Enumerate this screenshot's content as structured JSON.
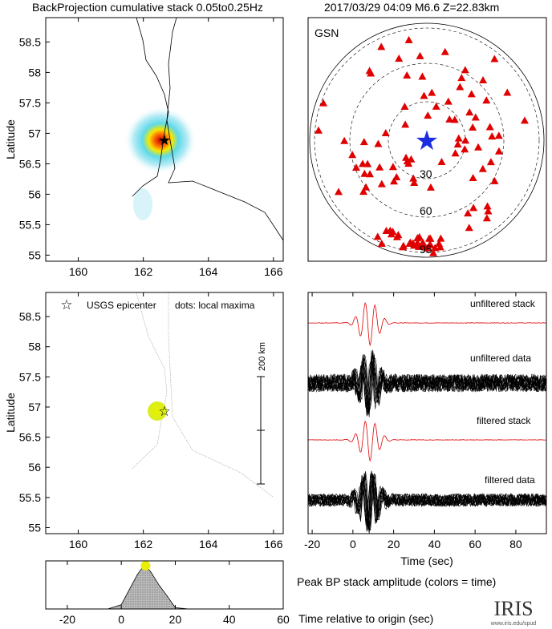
{
  "header": {
    "title": "BackProjection cumulative stack 0.05to0.25Hz",
    "event": "2017/03/29 04:09  M6.6  Z=22.83km"
  },
  "chart_data": [
    {
      "type": "heatmap",
      "name": "cumulative-stack-map",
      "ylabel": "Latitude",
      "xlim": [
        159,
        166.3
      ],
      "ylim": [
        54.9,
        58.9
      ],
      "xticks": [
        "160",
        "162",
        "164",
        "166"
      ],
      "yticks": [
        "55",
        "55.5",
        "56",
        "56.5",
        "57",
        "57.5",
        "58",
        "58.5"
      ],
      "epicenter": [
        162.7,
        56.93
      ],
      "peak": [
        162.6,
        56.95
      ]
    },
    {
      "type": "scatter",
      "name": "gsn-station-map",
      "label": "GSN",
      "rings": [
        "30",
        "60",
        "95"
      ],
      "event_marker": "blue-star"
    },
    {
      "type": "scatter",
      "name": "local-maxima-map",
      "ylabel": "Latitude",
      "xlim": [
        159,
        166.3
      ],
      "ylim": [
        54.9,
        58.9
      ],
      "xticks": [
        "160",
        "162",
        "164",
        "166"
      ],
      "yticks": [
        "55",
        "55.5",
        "56",
        "56.5",
        "57",
        "57.5",
        "58",
        "58.5"
      ],
      "legend_epicenter": "USGS epicenter",
      "legend_dots": "dots: local maxima",
      "scale_label": "200 km",
      "maxima": [
        [
          162.5,
          56.93
        ]
      ]
    },
    {
      "type": "line",
      "name": "waveforms",
      "xlabel": "Time (sec)",
      "xlim": [
        -22,
        95
      ],
      "xticks": [
        "-20",
        "0",
        "20",
        "40",
        "60",
        "80"
      ],
      "traces": [
        "unfiltered stack",
        "unfiltered data",
        "filtered stack",
        "filtered data"
      ]
    },
    {
      "type": "area",
      "name": "peak-amplitude",
      "xlabel": "Time relative to origin (sec)",
      "title": "Peak BP stack amplitude (colors = time)",
      "xlim": [
        -28,
        60
      ],
      "xticks": [
        "-20",
        "0",
        "20",
        "40",
        "60"
      ],
      "x": [
        -5,
        0,
        3,
        6,
        8,
        9,
        11,
        14,
        17,
        20,
        25
      ],
      "y": [
        0,
        0.1,
        0.45,
        0.8,
        0.97,
        1,
        0.85,
        0.55,
        0.3,
        0.03,
        0
      ]
    }
  ],
  "logo": {
    "text": "IRIS",
    "url": "www.iris.edu/spud"
  }
}
